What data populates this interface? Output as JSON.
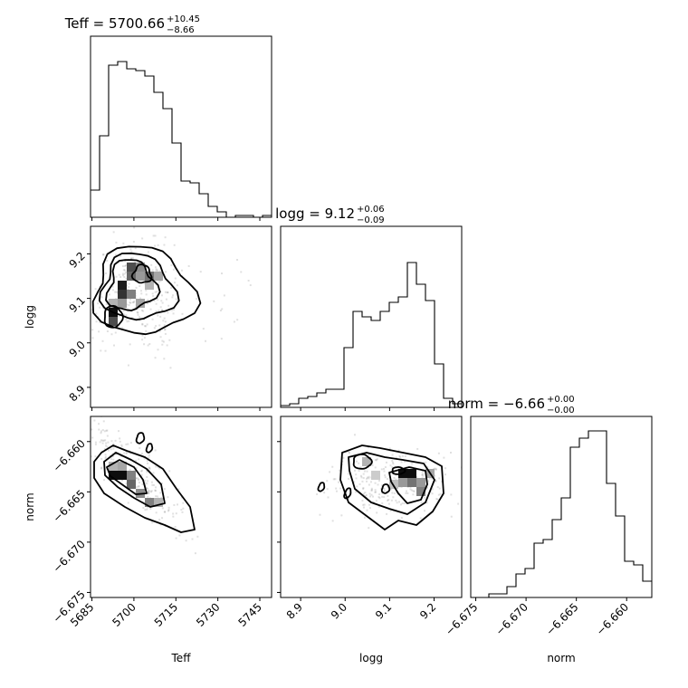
{
  "chart_data": {
    "type": "corner",
    "parameters": [
      "Teff",
      "logg",
      "norm"
    ],
    "titles": [
      {
        "param": "Teff",
        "prefix": "Teff = ",
        "value": "5700.66",
        "plus": "+10.45",
        "minus": "−8.66"
      },
      {
        "param": "logg",
        "prefix": "logg = ",
        "value": "9.12",
        "plus": "+0.06",
        "minus": "−0.09"
      },
      {
        "param": "norm",
        "prefix": "norm = ",
        "value": "−6.66",
        "plus": "+0.00",
        "minus": "−0.00"
      }
    ],
    "ranges": {
      "Teff": [
        5684.5,
        5749.2
      ],
      "logg": [
        8.855,
        9.262
      ],
      "norm": [
        -6.6755,
        -6.6575
      ]
    },
    "ticks": {
      "Teff": [
        "5685",
        "5700",
        "5715",
        "5730",
        "5745"
      ],
      "logg": [
        "8.9",
        "9.0",
        "9.1",
        "9.2"
      ],
      "norm": [
        "−6.675",
        "−6.670",
        "−6.665",
        "−6.660"
      ]
    },
    "tick_values": {
      "Teff": [
        5685,
        5700,
        5715,
        5730,
        5745
      ],
      "logg": [
        8.9,
        9.0,
        9.1,
        9.2
      ],
      "norm": [
        -6.675,
        -6.67,
        -6.665,
        -6.66
      ]
    },
    "histograms": {
      "Teff": {
        "x_start": 5684.5,
        "bin_width": 3.235,
        "counts": [
          0.15,
          0.45,
          0.84,
          0.86,
          0.82,
          0.81,
          0.78,
          0.69,
          0.6,
          0.41,
          0.2,
          0.19,
          0.13,
          0.06,
          0.03,
          0,
          0.01,
          0.01,
          0,
          0.01
        ]
      },
      "logg": {
        "x_start": 8.855,
        "bin_width": 0.02035,
        "counts": [
          0.01,
          0.02,
          0.05,
          0.06,
          0.08,
          0.1,
          0.1,
          0.33,
          0.53,
          0.5,
          0.48,
          0.53,
          0.58,
          0.61,
          0.8,
          0.68,
          0.59,
          0.24,
          0.05,
          0.02
        ]
      },
      "norm": {
        "x_start": -6.6755,
        "bin_width": 0.0009,
        "counts": [
          0,
          0,
          0.02,
          0.02,
          0.06,
          0.13,
          0.16,
          0.3,
          0.32,
          0.43,
          0.55,
          0.83,
          0.88,
          0.92,
          0.92,
          0.63,
          0.45,
          0.2,
          0.18,
          0.09
        ]
      }
    },
    "xlabels": [
      "Teff",
      "logg",
      "norm"
    ],
    "ylabels": [
      "",
      "logg",
      "norm"
    ]
  }
}
